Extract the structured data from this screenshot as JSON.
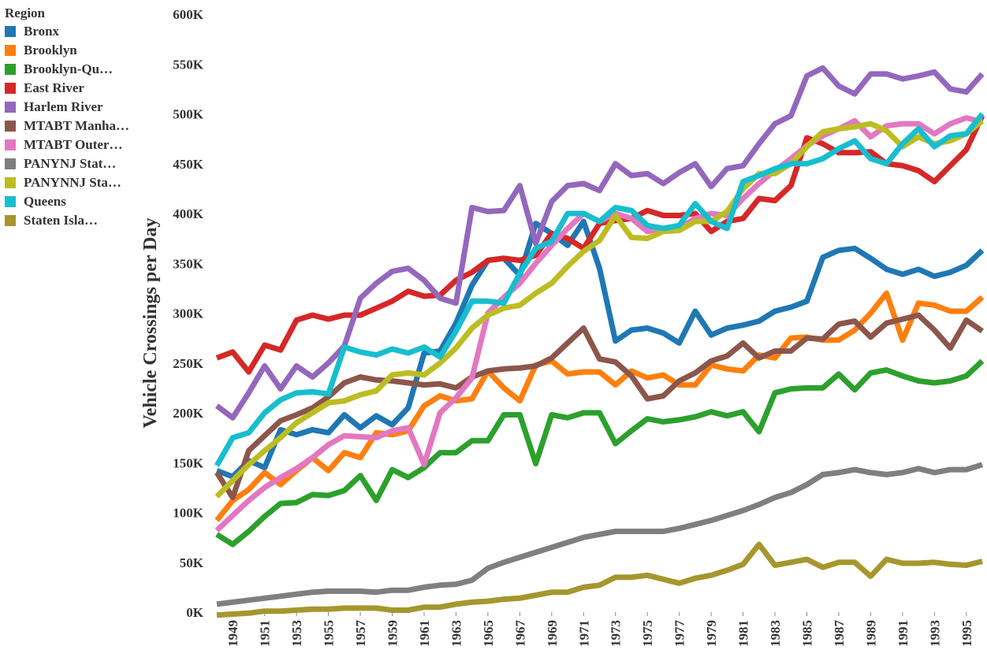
{
  "chart_data": {
    "type": "line",
    "ylabel": "Vehicle Crossings per Day",
    "xlabel": "",
    "legend_title": "Region",
    "legend_position": "top-left",
    "grid": false,
    "ylim": [
      0,
      600000
    ],
    "xlim": [
      1948,
      1996
    ],
    "y_ticks": [
      0,
      50000,
      100000,
      150000,
      200000,
      250000,
      300000,
      350000,
      400000,
      450000,
      500000,
      550000,
      600000
    ],
    "y_tick_labels": [
      "0K",
      "50K",
      "100K",
      "150K",
      "200K",
      "250K",
      "300K",
      "350K",
      "400K",
      "450K",
      "500K",
      "550K",
      "600K"
    ],
    "x_tick_labels": [
      "1949",
      "1951",
      "1953",
      "1955",
      "1957",
      "1959",
      "1961",
      "1963",
      "1965",
      "1967",
      "1969",
      "1971",
      "1973",
      "1975",
      "1977",
      "1979",
      "1981",
      "1983",
      "1985",
      "1987",
      "1989",
      "1991",
      "1993",
      "1995"
    ],
    "x": [
      1948,
      1949,
      1950,
      1951,
      1952,
      1953,
      1954,
      1955,
      1956,
      1957,
      1958,
      1959,
      1960,
      1961,
      1962,
      1963,
      1964,
      1965,
      1966,
      1967,
      1968,
      1969,
      1970,
      1971,
      1972,
      1973,
      1974,
      1975,
      1976,
      1977,
      1978,
      1979,
      1980,
      1981,
      1982,
      1983,
      1984,
      1985,
      1986,
      1987,
      1988,
      1989,
      1990,
      1991,
      1992,
      1993,
      1994,
      1995,
      1996
    ],
    "series": [
      {
        "name": "Bronx",
        "color": "#1f77b4",
        "values": [
          142000,
          136000,
          152000,
          145000,
          183000,
          178000,
          183000,
          180000,
          198000,
          185000,
          197000,
          188000,
          205000,
          260000,
          262000,
          290000,
          328000,
          353000,
          355000,
          338000,
          390000,
          380000,
          368000,
          392000,
          345000,
          272000,
          283000,
          285000,
          280000,
          270000,
          302000,
          278000,
          285000,
          288000,
          292000,
          302000,
          306000,
          312000,
          356000,
          363000,
          365000,
          355000,
          344000,
          339000,
          344000,
          337000,
          341000,
          348000,
          363000
        ]
      },
      {
        "name": "Brooklyn",
        "color": "#ff7f0e",
        "values": [
          92000,
          112000,
          123000,
          140000,
          128000,
          142000,
          155000,
          142000,
          160000,
          155000,
          180000,
          178000,
          182000,
          207000,
          217000,
          212000,
          214000,
          242000,
          225000,
          212000,
          248000,
          252000,
          239000,
          241000,
          241000,
          228000,
          242000,
          235000,
          238000,
          228000,
          228000,
          248000,
          244000,
          242000,
          258000,
          255000,
          275000,
          276000,
          273000,
          273000,
          283000,
          300000,
          320000,
          273000,
          310000,
          308000,
          302000,
          302000,
          316000
        ]
      },
      {
        "name": "Brooklyn-Queens",
        "color": "#2ca02c",
        "values": [
          78000,
          68000,
          81000,
          96000,
          109000,
          110000,
          118000,
          117000,
          122000,
          137000,
          112000,
          143000,
          135000,
          145000,
          160000,
          160000,
          172000,
          172000,
          198000,
          198000,
          149000,
          198000,
          195000,
          200000,
          200000,
          169000,
          182000,
          194000,
          191000,
          193000,
          196000,
          201000,
          197000,
          201000,
          181000,
          220000,
          224000,
          225000,
          225000,
          239000,
          223000,
          240000,
          243000,
          237000,
          232000,
          230000,
          232000,
          237000,
          252000
        ]
      },
      {
        "name": "East River",
        "color": "#d62728",
        "values": [
          255000,
          261000,
          241000,
          268000,
          263000,
          293000,
          298000,
          294000,
          298000,
          298000,
          305000,
          312000,
          322000,
          317000,
          318000,
          333000,
          341000,
          353000,
          355000,
          353000,
          358000,
          380000,
          375000,
          365000,
          390000,
          393000,
          395000,
          403000,
          398000,
          398000,
          400000,
          382000,
          392000,
          395000,
          415000,
          413000,
          428000,
          476000,
          470000,
          461000,
          461000,
          462000,
          450000,
          448000,
          443000,
          432000,
          448000,
          464000,
          498000
        ]
      },
      {
        "name": "Harlem River",
        "color": "#9467bd",
        "values": [
          207000,
          195000,
          220000,
          247000,
          224000,
          247000,
          236000,
          250000,
          267000,
          315000,
          330000,
          342000,
          345000,
          333000,
          315000,
          310000,
          406000,
          402000,
          403000,
          428000,
          370000,
          412000,
          428000,
          430000,
          423000,
          450000,
          438000,
          440000,
          430000,
          441000,
          450000,
          427000,
          445000,
          448000,
          470000,
          490000,
          498000,
          538000,
          546000,
          528000,
          520000,
          540000,
          540000,
          535000,
          538000,
          542000,
          525000,
          522000,
          540000
        ]
      },
      {
        "name": "MTABT Manhattan",
        "color": "#8c564b",
        "values": [
          140000,
          115000,
          162000,
          177000,
          192000,
          198000,
          205000,
          216000,
          230000,
          236000,
          233000,
          232000,
          230000,
          228000,
          229000,
          225000,
          236000,
          242000,
          244000,
          245000,
          247000,
          255000,
          270000,
          285000,
          254000,
          251000,
          237000,
          214000,
          217000,
          232000,
          240000,
          252000,
          257000,
          270000,
          255000,
          262000,
          262000,
          275000,
          274000,
          289000,
          292000,
          276000,
          290000,
          294000,
          298000,
          283000,
          265000,
          293000,
          282000
        ]
      },
      {
        "name": "MTABT Outer Boroughs",
        "color": "#e377c2",
        "values": [
          82000,
          97000,
          112000,
          125000,
          135000,
          144000,
          155000,
          168000,
          177000,
          176000,
          175000,
          182000,
          185000,
          148000,
          200000,
          215000,
          235000,
          300000,
          316000,
          330000,
          350000,
          368000,
          385000,
          400000,
          392000,
          400000,
          395000,
          382000,
          385000,
          385000,
          395000,
          400000,
          398000,
          415000,
          430000,
          443000,
          455000,
          468000,
          478000,
          485000,
          493000,
          477000,
          488000,
          490000,
          490000,
          480000,
          490000,
          496000,
          492000
        ]
      },
      {
        "name": "PANYNJ Staten Island",
        "color": "#7f7f7f",
        "values": [
          8000,
          10000,
          12000,
          14000,
          16000,
          18000,
          20000,
          21000,
          21000,
          21000,
          20000,
          22000,
          22000,
          25000,
          27000,
          28000,
          32000,
          44000,
          50000,
          55000,
          60000,
          65000,
          70000,
          75000,
          78000,
          81000,
          81000,
          81000,
          81000,
          84000,
          88000,
          92000,
          97000,
          102000,
          108000,
          115000,
          120000,
          128000,
          138000,
          140000,
          143000,
          140000,
          138000,
          140000,
          144000,
          140000,
          143000,
          143000,
          148000
        ]
      },
      {
        "name": "PANYNNJ Staten Island",
        "color": "#bcbd22",
        "values": [
          116000,
          132000,
          148000,
          162000,
          175000,
          190000,
          200000,
          210000,
          212000,
          218000,
          222000,
          238000,
          240000,
          238000,
          250000,
          265000,
          285000,
          298000,
          305000,
          308000,
          320000,
          330000,
          347000,
          362000,
          373000,
          398000,
          376000,
          375000,
          382000,
          383000,
          392000,
          392000,
          402000,
          425000,
          440000,
          440000,
          450000,
          467000,
          482000,
          485000,
          487000,
          490000,
          483000,
          467000,
          477000,
          470000,
          473000,
          480000,
          493000
        ]
      },
      {
        "name": "Queens",
        "color": "#17becf",
        "values": [
          147000,
          175000,
          180000,
          200000,
          213000,
          220000,
          221000,
          219000,
          266000,
          261000,
          258000,
          264000,
          260000,
          266000,
          256000,
          282000,
          312000,
          312000,
          310000,
          340000,
          365000,
          372000,
          400000,
          400000,
          392000,
          406000,
          403000,
          388000,
          385000,
          388000,
          410000,
          392000,
          385000,
          432000,
          438000,
          445000,
          450000,
          450000,
          455000,
          465000,
          473000,
          455000,
          450000,
          470000,
          485000,
          467000,
          478000,
          480000,
          500000
        ]
      },
      {
        "name": "Staten Island",
        "color": "#a6962d",
        "values": [
          -3000,
          -2000,
          -1000,
          1000,
          1000,
          2000,
          3000,
          3000,
          4000,
          4000,
          4000,
          2000,
          2000,
          5000,
          5000,
          8000,
          10000,
          11000,
          13000,
          14000,
          17000,
          20000,
          20000,
          25000,
          27000,
          35000,
          35000,
          37000,
          33000,
          29000,
          34000,
          37000,
          42000,
          48000,
          68000,
          47000,
          50000,
          53000,
          45000,
          50000,
          50000,
          36000,
          53000,
          49000,
          49000,
          50000,
          48000,
          47000,
          51000
        ]
      }
    ]
  }
}
